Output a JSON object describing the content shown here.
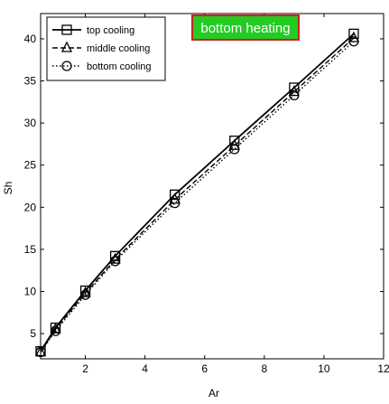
{
  "chart_data": {
    "type": "line",
    "title": "",
    "annotation": {
      "text": "bottom heating",
      "background": "#22cc22",
      "border": "#cc2222",
      "color": "#ffffff"
    },
    "xlabel": "Ar",
    "ylabel": "Sh",
    "xlim": [
      0.5,
      12
    ],
    "ylim": [
      2,
      43
    ],
    "xticks": [
      2,
      4,
      6,
      8,
      10,
      12
    ],
    "xtick_labels": [
      "2",
      "4",
      "6",
      "8",
      "10",
      "12"
    ],
    "yticks": [
      5,
      10,
      15,
      20,
      25,
      30,
      35,
      40
    ],
    "ytick_labels": [
      "5",
      "10",
      "15",
      "20",
      "25",
      "30",
      "35",
      "40"
    ],
    "grid": false,
    "legend_position": "top-left",
    "x": [
      0.5,
      1,
      2,
      3,
      5,
      7,
      9,
      11
    ],
    "series": [
      {
        "name": "top cooling",
        "marker": "square",
        "dash": "solid",
        "values": [
          2.9,
          5.7,
          10.1,
          14.2,
          21.5,
          27.9,
          34.2,
          40.6
        ]
      },
      {
        "name": "middle cooling",
        "marker": "triangle",
        "dash": "dashed",
        "values": [
          2.8,
          5.5,
          9.8,
          13.8,
          20.9,
          27.3,
          33.7,
          40.1
        ]
      },
      {
        "name": "bottom cooling",
        "marker": "circle",
        "dash": "dotted",
        "values": [
          2.8,
          5.3,
          9.6,
          13.6,
          20.5,
          26.9,
          33.3,
          39.7
        ]
      }
    ]
  }
}
